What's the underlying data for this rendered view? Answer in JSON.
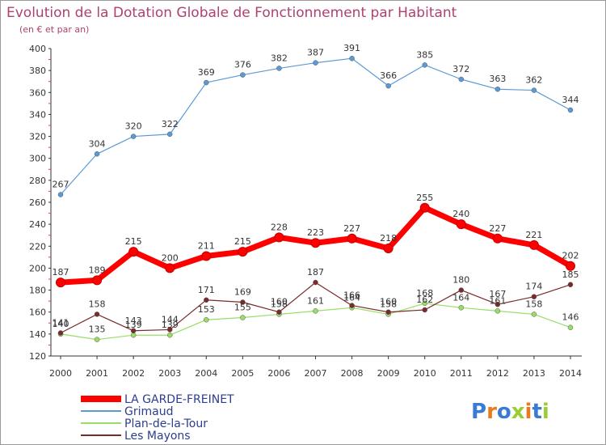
{
  "chart_data": {
    "type": "line",
    "title": "Evolution de la Dotation Globale de Fonctionnement par Habitant",
    "subtitle": "(en € et par an)",
    "x": [
      "2000",
      "2001",
      "2002",
      "2003",
      "2004",
      "2005",
      "2006",
      "2007",
      "2008",
      "2009",
      "2010",
      "2011",
      "2012",
      "2013",
      "2014"
    ],
    "ylim": [
      120,
      400
    ],
    "yticks": [
      120,
      140,
      160,
      180,
      200,
      220,
      240,
      260,
      280,
      300,
      320,
      340,
      360,
      380,
      400
    ],
    "grid": false,
    "legend_position": "bottom-left",
    "series": [
      {
        "name": "LA GARDE-FREINET",
        "color": "#ff0000",
        "values": [
          187,
          189,
          215,
          200,
          211,
          215,
          228,
          223,
          227,
          218,
          255,
          240,
          227,
          221,
          202
        ]
      },
      {
        "name": "Grimaud",
        "color": "#5b9bd5",
        "values": [
          267,
          304,
          320,
          322,
          369,
          376,
          382,
          387,
          391,
          366,
          385,
          372,
          363,
          362,
          344
        ]
      },
      {
        "name": "Plan-de-la-Tour",
        "color": "#99dd66",
        "values": [
          140,
          135,
          139,
          139,
          153,
          155,
          158,
          161,
          164,
          158,
          168,
          164,
          161,
          158,
          146
        ]
      },
      {
        "name": "Les Mayons",
        "color": "#7a2a2a",
        "values": [
          141,
          158,
          143,
          144,
          171,
          169,
          160,
          187,
          166,
          160,
          162,
          180,
          167,
          174,
          185
        ]
      }
    ]
  },
  "legend": [
    {
      "label": "LA GARDE-FREINET"
    },
    {
      "label": "Grimaud"
    },
    {
      "label": "Plan-de-la-Tour"
    },
    {
      "label": "Les Mayons"
    }
  ],
  "logo": {
    "text": "Proxiti"
  }
}
